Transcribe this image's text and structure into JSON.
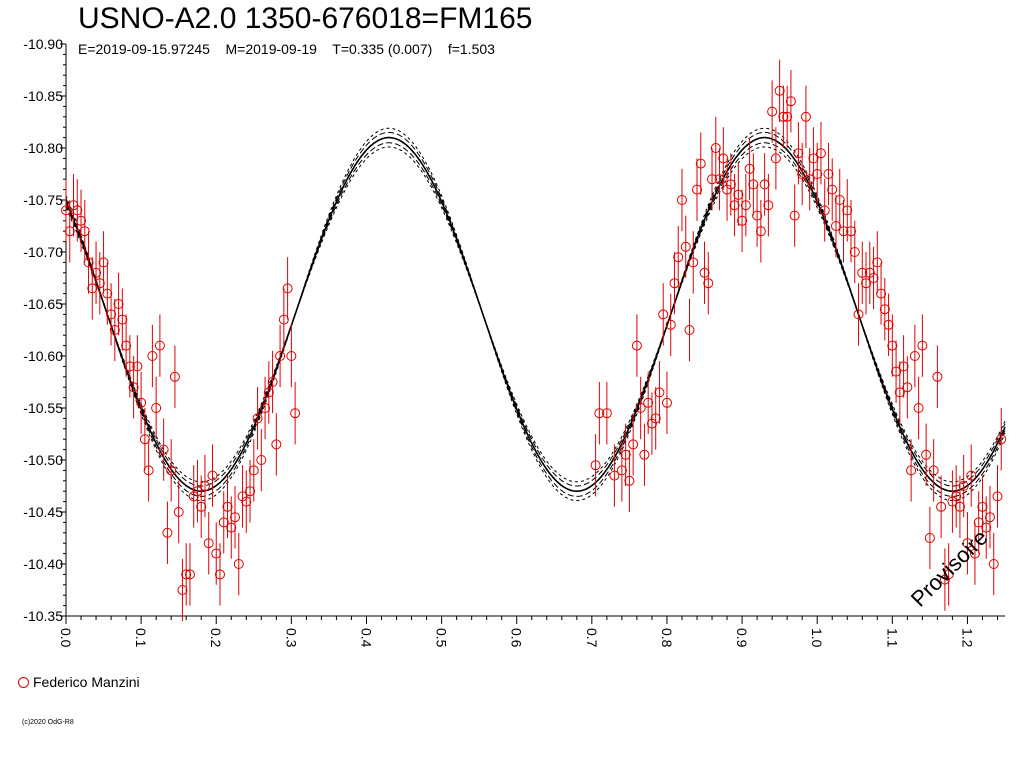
{
  "chart_data": {
    "type": "scatter",
    "title": "USNO-A2.0 1350-676018=FM165",
    "subtitle": "E=2019-09-15.97245    M=2019-09-19    T=0.335 (0.007)    f=1.503",
    "xlabel": "",
    "ylabel": "",
    "xlim": [
      0.0,
      1.25
    ],
    "ylim": [
      -10.9,
      -10.35
    ],
    "y_inverted": true,
    "grid": false,
    "x_ticks": [
      "0.0",
      "0.1",
      "0.2",
      "0.3",
      "0.4",
      "0.5",
      "0.6",
      "0.7",
      "0.8",
      "0.9",
      "1.0",
      "1.1",
      "1.2"
    ],
    "y_ticks": [
      "-10.90",
      "-10.85",
      "-10.80",
      "-10.75",
      "-10.70",
      "-10.65",
      "-10.60",
      "-10.55",
      "-10.50",
      "-10.45",
      "-10.40",
      "-10.35"
    ],
    "legend": {
      "placement": "bottom-left",
      "entries": [
        "Federico Manzini"
      ]
    },
    "watermark": "Provisoire",
    "copyright": "(c)2020 OdG-R8",
    "model": {
      "mean": -10.64,
      "amplitude": 0.17,
      "peak_phase": 0.43,
      "period_phase": 0.5,
      "band_offsets": [
        0,
        0.005,
        -0.005,
        0.009,
        -0.009
      ]
    },
    "series": [
      {
        "name": "Federico Manzini",
        "color": "#e00000",
        "marker": "open-circle",
        "points": [
          [
            0.0,
            -10.74,
            0.03
          ],
          [
            0.005,
            -10.72,
            0.03
          ],
          [
            0.01,
            -10.745,
            0.03
          ],
          [
            0.015,
            -10.74,
            0.03
          ],
          [
            0.02,
            -10.73,
            0.03
          ],
          [
            0.025,
            -10.72,
            0.03
          ],
          [
            0.03,
            -10.69,
            0.03
          ],
          [
            0.035,
            -10.665,
            0.03
          ],
          [
            0.04,
            -10.68,
            0.03
          ],
          [
            0.045,
            -10.67,
            0.03
          ],
          [
            0.05,
            -10.69,
            0.03
          ],
          [
            0.055,
            -10.66,
            0.03
          ],
          [
            0.06,
            -10.64,
            0.03
          ],
          [
            0.065,
            -10.625,
            0.03
          ],
          [
            0.07,
            -10.65,
            0.03
          ],
          [
            0.075,
            -10.635,
            0.03
          ],
          [
            0.08,
            -10.61,
            0.03
          ],
          [
            0.085,
            -10.59,
            0.03
          ],
          [
            0.09,
            -10.57,
            0.03
          ],
          [
            0.095,
            -10.59,
            0.03
          ],
          [
            0.1,
            -10.555,
            0.03
          ],
          [
            0.105,
            -10.52,
            0.03
          ],
          [
            0.11,
            -10.49,
            0.03
          ],
          [
            0.115,
            -10.6,
            0.03
          ],
          [
            0.12,
            -10.55,
            0.03
          ],
          [
            0.125,
            -10.61,
            0.03
          ],
          [
            0.13,
            -10.51,
            0.03
          ],
          [
            0.135,
            -10.43,
            0.03
          ],
          [
            0.14,
            -10.49,
            0.03
          ],
          [
            0.145,
            -10.58,
            0.03
          ],
          [
            0.15,
            -10.45,
            0.03
          ],
          [
            0.155,
            -10.375,
            0.03
          ],
          [
            0.16,
            -10.39,
            0.03
          ],
          [
            0.165,
            -10.39,
            0.03
          ],
          [
            0.17,
            -10.465,
            0.03
          ],
          [
            0.175,
            -10.47,
            0.03
          ],
          [
            0.18,
            -10.455,
            0.03
          ],
          [
            0.185,
            -10.475,
            0.03
          ],
          [
            0.19,
            -10.42,
            0.03
          ],
          [
            0.195,
            -10.485,
            0.03
          ],
          [
            0.2,
            -10.41,
            0.03
          ],
          [
            0.205,
            -10.39,
            0.03
          ],
          [
            0.21,
            -10.44,
            0.03
          ],
          [
            0.215,
            -10.455,
            0.03
          ],
          [
            0.22,
            -10.435,
            0.03
          ],
          [
            0.225,
            -10.445,
            0.03
          ],
          [
            0.23,
            -10.4,
            0.03
          ],
          [
            0.235,
            -10.465,
            0.03
          ],
          [
            0.24,
            -10.46,
            0.03
          ],
          [
            0.245,
            -10.47,
            0.03
          ],
          [
            0.25,
            -10.49,
            0.03
          ],
          [
            0.255,
            -10.54,
            0.03
          ],
          [
            0.26,
            -10.5,
            0.03
          ],
          [
            0.265,
            -10.55,
            0.03
          ],
          [
            0.27,
            -10.565,
            0.03
          ],
          [
            0.275,
            -10.575,
            0.03
          ],
          [
            0.28,
            -10.515,
            0.03
          ],
          [
            0.285,
            -10.6,
            0.03
          ],
          [
            0.29,
            -10.635,
            0.03
          ],
          [
            0.295,
            -10.665,
            0.03
          ],
          [
            0.3,
            -10.6,
            0.03
          ],
          [
            0.305,
            -10.545,
            0.03
          ],
          [
            0.705,
            -10.495,
            0.03
          ],
          [
            0.71,
            -10.545,
            0.03
          ],
          [
            0.72,
            -10.545,
            0.03
          ],
          [
            0.73,
            -10.485,
            0.03
          ],
          [
            0.74,
            -10.49,
            0.03
          ],
          [
            0.745,
            -10.505,
            0.03
          ],
          [
            0.75,
            -10.48,
            0.03
          ],
          [
            0.755,
            -10.515,
            0.03
          ],
          [
            0.76,
            -10.61,
            0.03
          ],
          [
            0.765,
            -10.55,
            0.03
          ],
          [
            0.77,
            -10.505,
            0.03
          ],
          [
            0.775,
            -10.555,
            0.03
          ],
          [
            0.78,
            -10.535,
            0.03
          ],
          [
            0.785,
            -10.54,
            0.03
          ],
          [
            0.79,
            -10.565,
            0.03
          ],
          [
            0.795,
            -10.64,
            0.03
          ],
          [
            0.8,
            -10.555,
            0.03
          ],
          [
            0.805,
            -10.63,
            0.03
          ],
          [
            0.81,
            -10.67,
            0.03
          ],
          [
            0.815,
            -10.695,
            0.03
          ],
          [
            0.82,
            -10.75,
            0.03
          ],
          [
            0.825,
            -10.705,
            0.03
          ],
          [
            0.83,
            -10.625,
            0.03
          ],
          [
            0.835,
            -10.69,
            0.03
          ],
          [
            0.84,
            -10.76,
            0.03
          ],
          [
            0.845,
            -10.785,
            0.03
          ],
          [
            0.85,
            -10.68,
            0.03
          ],
          [
            0.855,
            -10.67,
            0.03
          ],
          [
            0.86,
            -10.77,
            0.03
          ],
          [
            0.865,
            -10.8,
            0.03
          ],
          [
            0.87,
            -10.77,
            0.03
          ],
          [
            0.875,
            -10.79,
            0.03
          ],
          [
            0.88,
            -10.76,
            0.03
          ],
          [
            0.885,
            -10.765,
            0.03
          ],
          [
            0.89,
            -10.745,
            0.03
          ],
          [
            0.895,
            -10.755,
            0.03
          ],
          [
            0.9,
            -10.73,
            0.03
          ],
          [
            0.905,
            -10.745,
            0.03
          ],
          [
            0.91,
            -10.78,
            0.03
          ],
          [
            0.915,
            -10.765,
            0.03
          ],
          [
            0.92,
            -10.735,
            0.03
          ],
          [
            0.925,
            -10.72,
            0.03
          ],
          [
            0.93,
            -10.765,
            0.03
          ],
          [
            0.935,
            -10.745,
            0.03
          ],
          [
            0.94,
            -10.835,
            0.03
          ],
          [
            0.945,
            -10.79,
            0.03
          ],
          [
            0.95,
            -10.855,
            0.03
          ],
          [
            0.955,
            -10.83,
            0.03
          ],
          [
            0.96,
            -10.83,
            0.03
          ],
          [
            0.965,
            -10.845,
            0.03
          ],
          [
            0.97,
            -10.735,
            0.03
          ],
          [
            0.975,
            -10.795,
            0.03
          ],
          [
            0.98,
            -10.775,
            0.03
          ],
          [
            0.985,
            -10.83,
            0.03
          ],
          [
            0.99,
            -10.77,
            0.03
          ],
          [
            0.995,
            -10.79,
            0.03
          ],
          [
            1.0,
            -10.775,
            0.03
          ],
          [
            1.005,
            -10.795,
            0.03
          ],
          [
            1.01,
            -10.74,
            0.03
          ],
          [
            1.015,
            -10.775,
            0.03
          ],
          [
            1.02,
            -10.76,
            0.03
          ],
          [
            1.025,
            -10.725,
            0.03
          ],
          [
            1.03,
            -10.75,
            0.03
          ],
          [
            1.035,
            -10.72,
            0.03
          ],
          [
            1.04,
            -10.74,
            0.03
          ],
          [
            1.045,
            -10.72,
            0.03
          ],
          [
            1.05,
            -10.7,
            0.03
          ],
          [
            1.055,
            -10.64,
            0.03
          ],
          [
            1.06,
            -10.68,
            0.03
          ],
          [
            1.065,
            -10.67,
            0.03
          ],
          [
            1.07,
            -10.68,
            0.03
          ],
          [
            1.075,
            -10.675,
            0.03
          ],
          [
            1.08,
            -10.69,
            0.03
          ],
          [
            1.085,
            -10.66,
            0.03
          ],
          [
            1.09,
            -10.645,
            0.03
          ],
          [
            1.095,
            -10.63,
            0.03
          ],
          [
            1.1,
            -10.61,
            0.03
          ],
          [
            1.105,
            -10.585,
            0.03
          ],
          [
            1.11,
            -10.565,
            0.03
          ],
          [
            1.115,
            -10.59,
            0.03
          ],
          [
            1.12,
            -10.57,
            0.03
          ],
          [
            1.125,
            -10.49,
            0.03
          ],
          [
            1.13,
            -10.6,
            0.03
          ],
          [
            1.135,
            -10.55,
            0.03
          ],
          [
            1.14,
            -10.61,
            0.03
          ],
          [
            1.145,
            -10.505,
            0.03
          ],
          [
            1.15,
            -10.425,
            0.03
          ],
          [
            1.155,
            -10.49,
            0.03
          ],
          [
            1.16,
            -10.58,
            0.03
          ],
          [
            1.165,
            -10.455,
            0.03
          ],
          [
            1.17,
            -10.385,
            0.03
          ],
          [
            1.175,
            -10.39,
            0.03
          ],
          [
            1.18,
            -10.46,
            0.03
          ],
          [
            1.185,
            -10.465,
            0.03
          ],
          [
            1.19,
            -10.455,
            0.03
          ],
          [
            1.195,
            -10.475,
            0.03
          ],
          [
            1.2,
            -10.42,
            0.03
          ],
          [
            1.205,
            -10.485,
            0.03
          ],
          [
            1.21,
            -10.41,
            0.03
          ],
          [
            1.215,
            -10.44,
            0.03
          ],
          [
            1.22,
            -10.455,
            0.03
          ],
          [
            1.225,
            -10.435,
            0.03
          ],
          [
            1.23,
            -10.445,
            0.03
          ],
          [
            1.235,
            -10.4,
            0.03
          ],
          [
            1.24,
            -10.465,
            0.03
          ],
          [
            1.245,
            -10.52,
            0.03
          ]
        ]
      }
    ]
  }
}
